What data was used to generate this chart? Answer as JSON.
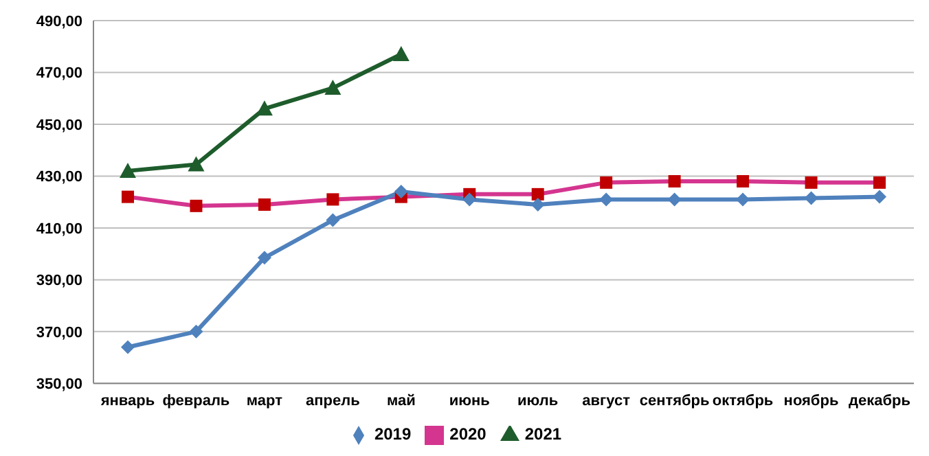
{
  "chart_data": {
    "type": "line",
    "categories": [
      "январь",
      "февраль",
      "март",
      "апрель",
      "май",
      "июнь",
      "июль",
      "август",
      "сентябрь",
      "октябрь",
      "ноябрь",
      "декабрь"
    ],
    "series": [
      {
        "name": "2019",
        "color": "#4f81bd",
        "marker": "diamond",
        "values": [
          364,
          370,
          398.5,
          413,
          424,
          421,
          419,
          421,
          421,
          421,
          421.5,
          422
        ]
      },
      {
        "name": "2020",
        "color": "#d4358f",
        "marker": "square",
        "values": [
          422,
          418.5,
          419,
          421,
          422,
          423,
          423,
          427.5,
          428,
          428,
          427.5,
          427.5
        ]
      },
      {
        "name": "2021",
        "color": "#1e5c2c",
        "marker": "triangle",
        "values": [
          432,
          434.5,
          456,
          464,
          477,
          null,
          null,
          null,
          null,
          null,
          null,
          null
        ]
      }
    ],
    "ylim": [
      350,
      490
    ],
    "yticks": [
      {
        "value": 350,
        "label": "350,00"
      },
      {
        "value": 370,
        "label": "370,00"
      },
      {
        "value": 390,
        "label": "390,00"
      },
      {
        "value": 410,
        "label": "410,00"
      },
      {
        "value": 430,
        "label": "430,00"
      },
      {
        "value": 450,
        "label": "450,00"
      },
      {
        "value": 470,
        "label": "470,00"
      },
      {
        "value": 490,
        "label": "490,00"
      }
    ],
    "grid": "y",
    "legend": "bottom",
    "line_style": "solid"
  }
}
